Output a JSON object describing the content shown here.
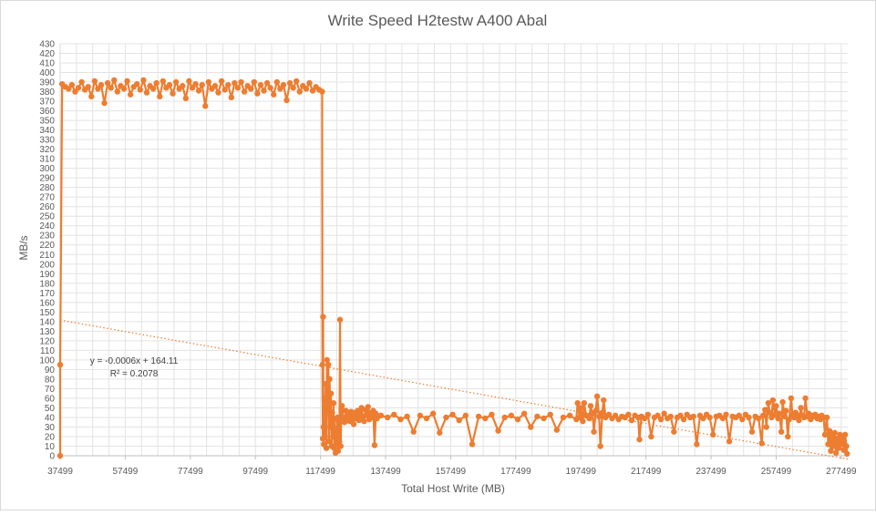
{
  "chart_data": {
    "type": "line",
    "title": "Write Speed H2testw A400 Abal",
    "xlabel": "Total Host Write (MB)",
    "ylabel": "MB/s",
    "xlim": [
      37499,
      279499
    ],
    "ylim": [
      0,
      430
    ],
    "x_ticks": [
      37499,
      57499,
      77499,
      97499,
      117499,
      137499,
      157499,
      177499,
      197499,
      217499,
      237499,
      257499,
      277499
    ],
    "y_ticks": [
      0,
      10,
      20,
      30,
      40,
      50,
      60,
      70,
      80,
      90,
      100,
      110,
      120,
      130,
      140,
      150,
      160,
      170,
      180,
      190,
      200,
      210,
      220,
      230,
      240,
      250,
      260,
      270,
      280,
      290,
      300,
      310,
      320,
      330,
      340,
      350,
      360,
      370,
      380,
      390,
      400,
      410,
      420,
      430
    ],
    "grid": true,
    "series_color": "#ED7D31",
    "trendline": {
      "style": "dotted",
      "slope": -0.0006,
      "intercept": 164.11,
      "equation": "y = -0.0006x + 164.11",
      "r_squared": "R² = 0.2078"
    },
    "series": [
      {
        "points": [
          [
            37499,
            0
          ],
          [
            37499,
            95
          ],
          [
            38099,
            388
          ],
          [
            39099,
            385
          ],
          [
            40099,
            383
          ],
          [
            41099,
            387
          ],
          [
            42099,
            380
          ],
          [
            43099,
            384
          ],
          [
            44099,
            390
          ],
          [
            45099,
            382
          ],
          [
            46099,
            385
          ],
          [
            47099,
            375
          ],
          [
            48099,
            391
          ],
          [
            49099,
            383
          ],
          [
            50099,
            387
          ],
          [
            51099,
            368
          ],
          [
            52099,
            389
          ],
          [
            53099,
            384
          ],
          [
            54099,
            392
          ],
          [
            55099,
            380
          ],
          [
            56099,
            386
          ],
          [
            57099,
            383
          ],
          [
            58099,
            391
          ],
          [
            59099,
            377
          ],
          [
            60099,
            385
          ],
          [
            61099,
            388
          ],
          [
            62099,
            382
          ],
          [
            63099,
            392
          ],
          [
            64099,
            379
          ],
          [
            65099,
            386
          ],
          [
            66099,
            383
          ],
          [
            67099,
            389
          ],
          [
            68099,
            375
          ],
          [
            69099,
            391
          ],
          [
            70099,
            384
          ],
          [
            71099,
            387
          ],
          [
            72099,
            378
          ],
          [
            73099,
            390
          ],
          [
            74099,
            383
          ],
          [
            75099,
            386
          ],
          [
            76099,
            373
          ],
          [
            77099,
            391
          ],
          [
            78099,
            384
          ],
          [
            79099,
            388
          ],
          [
            80099,
            381
          ],
          [
            81099,
            387
          ],
          [
            82099,
            365
          ],
          [
            83099,
            390
          ],
          [
            84099,
            383
          ],
          [
            85099,
            386
          ],
          [
            86099,
            379
          ],
          [
            87099,
            391
          ],
          [
            88099,
            382
          ],
          [
            89099,
            387
          ],
          [
            90099,
            374
          ],
          [
            91099,
            389
          ],
          [
            92099,
            384
          ],
          [
            93099,
            390
          ],
          [
            94099,
            380
          ],
          [
            95099,
            386
          ],
          [
            96099,
            383
          ],
          [
            97099,
            390
          ],
          [
            98099,
            378
          ],
          [
            99099,
            387
          ],
          [
            100099,
            381
          ],
          [
            101099,
            389
          ],
          [
            102099,
            384
          ],
          [
            103099,
            377
          ],
          [
            104099,
            390
          ],
          [
            105099,
            383
          ],
          [
            106099,
            387
          ],
          [
            107099,
            371
          ],
          [
            108099,
            389
          ],
          [
            109099,
            384
          ],
          [
            110099,
            391
          ],
          [
            111099,
            380
          ],
          [
            112099,
            386
          ],
          [
            113099,
            383
          ],
          [
            114099,
            389
          ],
          [
            115099,
            381
          ],
          [
            116099,
            385
          ],
          [
            117099,
            382
          ],
          [
            117999,
            380
          ],
          [
            118099,
            95
          ],
          [
            118199,
            18
          ],
          [
            118299,
            145
          ],
          [
            118399,
            30
          ],
          [
            118499,
            12
          ],
          [
            118699,
            60
          ],
          [
            118899,
            20
          ],
          [
            119099,
            75
          ],
          [
            119299,
            8
          ],
          [
            119499,
            100
          ],
          [
            119699,
            45
          ],
          [
            119899,
            95
          ],
          [
            120099,
            15
          ],
          [
            120299,
            80
          ],
          [
            120499,
            30
          ],
          [
            120699,
            65
          ],
          [
            120899,
            10
          ],
          [
            121099,
            45
          ],
          [
            121299,
            20
          ],
          [
            121499,
            55
          ],
          [
            121699,
            8
          ],
          [
            121899,
            38
          ],
          [
            122099,
            3
          ],
          [
            122299,
            25
          ],
          [
            122499,
            12
          ],
          [
            122699,
            40
          ],
          [
            122899,
            5
          ],
          [
            123099,
            30
          ],
          [
            123299,
            15
          ],
          [
            123499,
            142
          ],
          [
            123699,
            10
          ],
          [
            123899,
            48
          ],
          [
            124099,
            52
          ],
          [
            124499,
            40
          ],
          [
            124899,
            35
          ],
          [
            125299,
            47
          ],
          [
            125699,
            38
          ],
          [
            126099,
            44
          ],
          [
            126499,
            36
          ],
          [
            126899,
            46
          ],
          [
            127299,
            40
          ],
          [
            127699,
            33
          ],
          [
            128099,
            45
          ],
          [
            128499,
            39
          ],
          [
            128899,
            47
          ],
          [
            129299,
            37
          ],
          [
            129699,
            43
          ],
          [
            130099,
            50
          ],
          [
            130499,
            41
          ],
          [
            130899,
            36
          ],
          [
            131299,
            48
          ],
          [
            131699,
            42
          ],
          [
            132099,
            51
          ],
          [
            132499,
            38
          ],
          [
            132899,
            45
          ],
          [
            133299,
            40
          ],
          [
            133699,
            47
          ],
          [
            134099,
            11
          ],
          [
            134499,
            44
          ],
          [
            134899,
            39
          ],
          [
            136099,
            42
          ],
          [
            138099,
            40
          ],
          [
            140099,
            43
          ],
          [
            142099,
            38
          ],
          [
            144099,
            41
          ],
          [
            146099,
            25
          ],
          [
            148099,
            42
          ],
          [
            150099,
            39
          ],
          [
            152099,
            44
          ],
          [
            154099,
            24
          ],
          [
            156099,
            40
          ],
          [
            158099,
            43
          ],
          [
            160099,
            37
          ],
          [
            162099,
            42
          ],
          [
            164099,
            12
          ],
          [
            166099,
            41
          ],
          [
            168099,
            39
          ],
          [
            170099,
            43
          ],
          [
            172099,
            26
          ],
          [
            174099,
            40
          ],
          [
            176099,
            42
          ],
          [
            178099,
            38
          ],
          [
            180099,
            44
          ],
          [
            182099,
            30
          ],
          [
            184099,
            41
          ],
          [
            186099,
            39
          ],
          [
            188099,
            43
          ],
          [
            190099,
            27
          ],
          [
            192099,
            40
          ],
          [
            194099,
            42
          ],
          [
            196099,
            38
          ],
          [
            196499,
            55
          ],
          [
            197099,
            40
          ],
          [
            197499,
            50
          ],
          [
            198099,
            36
          ],
          [
            198499,
            55
          ],
          [
            199099,
            42
          ],
          [
            200099,
            39
          ],
          [
            200499,
            52
          ],
          [
            201099,
            44
          ],
          [
            201499,
            25
          ],
          [
            202099,
            47
          ],
          [
            202499,
            62
          ],
          [
            203099,
            41
          ],
          [
            203499,
            10
          ],
          [
            204099,
            45
          ],
          [
            204499,
            58
          ],
          [
            205099,
            40
          ],
          [
            206099,
            43
          ],
          [
            207099,
            39
          ],
          [
            208099,
            42
          ],
          [
            209099,
            38
          ],
          [
            210099,
            41
          ],
          [
            211099,
            40
          ],
          [
            212099,
            43
          ],
          [
            213099,
            37
          ],
          [
            214099,
            42
          ],
          [
            215099,
            40
          ],
          [
            215499,
            17
          ],
          [
            216099,
            41
          ],
          [
            217099,
            39
          ],
          [
            218099,
            43
          ],
          [
            219099,
            20
          ],
          [
            220099,
            40
          ],
          [
            221099,
            42
          ],
          [
            222099,
            38
          ],
          [
            223099,
            44
          ],
          [
            224099,
            39
          ],
          [
            225099,
            41
          ],
          [
            226099,
            25
          ],
          [
            227099,
            40
          ],
          [
            228099,
            42
          ],
          [
            229099,
            38
          ],
          [
            230099,
            43
          ],
          [
            231099,
            40
          ],
          [
            232099,
            41
          ],
          [
            233099,
            12
          ],
          [
            234099,
            42
          ],
          [
            235099,
            39
          ],
          [
            236099,
            43
          ],
          [
            237099,
            40
          ],
          [
            238099,
            22
          ],
          [
            239099,
            41
          ],
          [
            240099,
            42
          ],
          [
            241099,
            39
          ],
          [
            242099,
            43
          ],
          [
            243099,
            15
          ],
          [
            244099,
            41
          ],
          [
            245099,
            40
          ],
          [
            246099,
            42
          ],
          [
            247099,
            38
          ],
          [
            248099,
            43
          ],
          [
            249099,
            40
          ],
          [
            250099,
            25
          ],
          [
            251099,
            41
          ],
          [
            252099,
            39
          ],
          [
            253099,
            13
          ],
          [
            253499,
            42
          ],
          [
            254099,
            48
          ],
          [
            254499,
            30
          ],
          [
            255099,
            55
          ],
          [
            255499,
            45
          ],
          [
            256099,
            40
          ],
          [
            256499,
            58
          ],
          [
            257099,
            43
          ],
          [
            257499,
            52
          ],
          [
            258099,
            39
          ],
          [
            258499,
            44
          ],
          [
            259099,
            25
          ],
          [
            259499,
            56
          ],
          [
            260099,
            41
          ],
          [
            260499,
            47
          ],
          [
            261099,
            20
          ],
          [
            261499,
            38
          ],
          [
            262099,
            60
          ],
          [
            262499,
            43
          ],
          [
            263099,
            40
          ],
          [
            263499,
            45
          ],
          [
            264099,
            42
          ],
          [
            264499,
            37
          ],
          [
            265099,
            50
          ],
          [
            265499,
            42
          ],
          [
            266099,
            40
          ],
          [
            266499,
            60
          ],
          [
            267099,
            41
          ],
          [
            267499,
            44
          ],
          [
            268099,
            38
          ],
          [
            268499,
            42
          ],
          [
            269099,
            41
          ],
          [
            269499,
            43
          ],
          [
            270099,
            39
          ],
          [
            270499,
            41
          ],
          [
            271099,
            38
          ],
          [
            271499,
            42
          ],
          [
            272099,
            40
          ],
          [
            272499,
            22
          ],
          [
            273099,
            40
          ],
          [
            273499,
            12
          ],
          [
            273899,
            26
          ],
          [
            274299,
            5
          ],
          [
            274699,
            22
          ],
          [
            275099,
            10
          ],
          [
            275499,
            24
          ],
          [
            275899,
            3
          ],
          [
            276299,
            18
          ],
          [
            276699,
            8
          ],
          [
            277099,
            22
          ],
          [
            277499,
            12
          ],
          [
            277899,
            19
          ],
          [
            278299,
            6
          ],
          [
            278699,
            22
          ],
          [
            279099,
            10
          ],
          [
            279299,
            2
          ]
        ]
      }
    ]
  }
}
